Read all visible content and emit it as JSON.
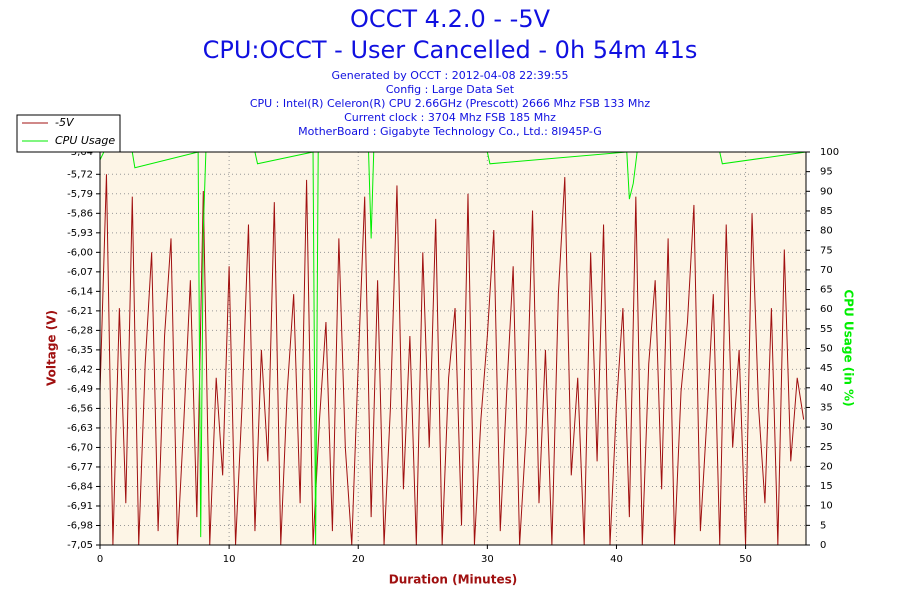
{
  "chart_data": {
    "type": "line",
    "title": "OCCT 4.2.0 - -5V",
    "subtitle": "CPU:OCCT - User Cancelled - 0h 54m 41s",
    "info": [
      "Generated by OCCT : 2012-04-08 22:39:55",
      "Config : Large Data Set",
      "CPU : Intel(R) Celeron(R) CPU 2.66GHz (Prescott) 2666 Mhz FSB 133 Mhz",
      "Current clock : 3704 Mhz FSB 185 Mhz",
      "MotherBoard : Gigabyte Technology Co., Ltd.: 8I945P-G"
    ],
    "x_label": "Duration (Minutes)",
    "y_label": "Voltage (V)",
    "y2_label": "CPU Usage (in %)",
    "xlim": [
      0,
      54.68
    ],
    "xticks": [
      0,
      10,
      20,
      30,
      40,
      50
    ],
    "ylim": [
      -7.05,
      -5.64
    ],
    "yticks": [
      {
        "value": -7.05,
        "label": "-7,05"
      },
      {
        "value": -6.98,
        "label": "-6,98"
      },
      {
        "value": -6.91,
        "label": "-6,91"
      },
      {
        "value": -6.84,
        "label": "-6,84"
      },
      {
        "value": -6.77,
        "label": "-6,77"
      },
      {
        "value": -6.7,
        "label": "-6,70"
      },
      {
        "value": -6.63,
        "label": "-6,63"
      },
      {
        "value": -6.56,
        "label": "-6,56"
      },
      {
        "value": -6.49,
        "label": "-6,49"
      },
      {
        "value": -6.42,
        "label": "-6,42"
      },
      {
        "value": -6.35,
        "label": "-6,35"
      },
      {
        "value": -6.28,
        "label": "-6,28"
      },
      {
        "value": -6.21,
        "label": "-6,21"
      },
      {
        "value": -6.14,
        "label": "-6,14"
      },
      {
        "value": -6.07,
        "label": "-6,07"
      },
      {
        "value": -6.0,
        "label": "-6,00"
      },
      {
        "value": -5.93,
        "label": "-5,93"
      },
      {
        "value": -5.86,
        "label": "-5,86"
      },
      {
        "value": -5.79,
        "label": "-5,79"
      },
      {
        "value": -5.72,
        "label": "-5,72"
      },
      {
        "value": -5.64,
        "label": "-5,64"
      }
    ],
    "y2lim": [
      0,
      100
    ],
    "y2ticks": [
      0,
      5,
      10,
      15,
      20,
      25,
      30,
      35,
      40,
      45,
      50,
      55,
      60,
      65,
      70,
      75,
      80,
      85,
      90,
      95,
      100
    ],
    "grid": true,
    "legend": "top-left",
    "series": [
      {
        "name": "-5V",
        "color": "#a01010",
        "x": [
          0,
          0.5,
          1,
          1.5,
          2,
          2.5,
          3,
          3.5,
          4,
          4.5,
          5,
          5.5,
          6,
          6.5,
          7,
          7.5,
          8,
          8.5,
          9,
          9.5,
          10,
          10.5,
          11,
          11.5,
          12,
          12.5,
          13,
          13.5,
          14,
          14.5,
          15,
          15.5,
          16,
          16.5,
          17,
          17.5,
          18,
          18.5,
          19,
          19.5,
          20,
          20.5,
          21,
          21.5,
          22,
          22.5,
          23,
          23.5,
          24,
          24.5,
          25,
          25.5,
          26,
          26.5,
          27,
          27.5,
          28,
          28.5,
          29,
          29.5,
          30,
          30.5,
          31,
          31.5,
          32,
          32.5,
          33,
          33.5,
          34,
          34.5,
          35,
          35.5,
          36,
          36.5,
          37,
          37.5,
          38,
          38.5,
          39,
          39.5,
          40,
          40.5,
          41,
          41.5,
          42,
          42.5,
          43,
          43.5,
          44,
          44.5,
          45,
          45.5,
          46,
          46.5,
          47,
          47.5,
          48,
          48.5,
          49,
          49.5,
          50,
          50.5,
          51,
          51.5,
          52,
          52.5,
          53,
          53.5,
          54,
          54.5
        ],
        "values": [
          -6.5,
          -5.72,
          -7.05,
          -6.2,
          -6.9,
          -5.8,
          -7.05,
          -6.4,
          -6.0,
          -7.0,
          -6.3,
          -5.95,
          -7.05,
          -6.6,
          -6.1,
          -6.95,
          -5.78,
          -7.05,
          -6.45,
          -6.8,
          -6.05,
          -7.05,
          -6.55,
          -5.9,
          -7.0,
          -6.35,
          -6.75,
          -5.82,
          -7.05,
          -6.5,
          -6.15,
          -6.9,
          -5.74,
          -7.05,
          -6.6,
          -6.25,
          -7.0,
          -5.95,
          -6.7,
          -7.05,
          -6.4,
          -5.8,
          -6.95,
          -6.1,
          -7.05,
          -6.55,
          -5.76,
          -6.85,
          -6.3,
          -7.05,
          -6.0,
          -6.7,
          -5.88,
          -7.05,
          -6.45,
          -6.2,
          -6.98,
          -5.79,
          -7.05,
          -6.6,
          -6.3,
          -5.92,
          -7.0,
          -6.5,
          -6.05,
          -7.05,
          -6.65,
          -5.85,
          -6.9,
          -6.35,
          -7.05,
          -6.15,
          -5.73,
          -6.8,
          -6.45,
          -7.05,
          -6.0,
          -6.75,
          -5.9,
          -7.05,
          -6.55,
          -6.2,
          -6.95,
          -5.8,
          -7.05,
          -6.4,
          -6.1,
          -6.85,
          -5.95,
          -7.05,
          -6.5,
          -6.25,
          -5.83,
          -7.0,
          -6.6,
          -6.15,
          -7.05,
          -5.9,
          -6.7,
          -6.35,
          -7.05,
          -5.86,
          -6.55,
          -6.9,
          -6.2,
          -7.05,
          -5.99,
          -6.75,
          -6.45,
          -6.6
        ]
      },
      {
        "name": "CPU Usage",
        "color": "#00ee00",
        "axis": "y2",
        "x": [
          0,
          0.3,
          2.5,
          2.7,
          7.6,
          7.8,
          8.0,
          8.2,
          12.0,
          12.2,
          16.5,
          16.7,
          16.9,
          20.8,
          21.0,
          21.2,
          30.0,
          30.2,
          40.8,
          41.0,
          41.3,
          41.6,
          48.0,
          48.2,
          54.68
        ],
        "values": [
          98,
          100,
          100,
          96,
          100,
          2,
          80,
          100,
          100,
          97,
          100,
          0,
          100,
          100,
          78,
          100,
          100,
          97,
          100,
          88,
          92,
          100,
          100,
          97,
          100
        ]
      }
    ]
  }
}
